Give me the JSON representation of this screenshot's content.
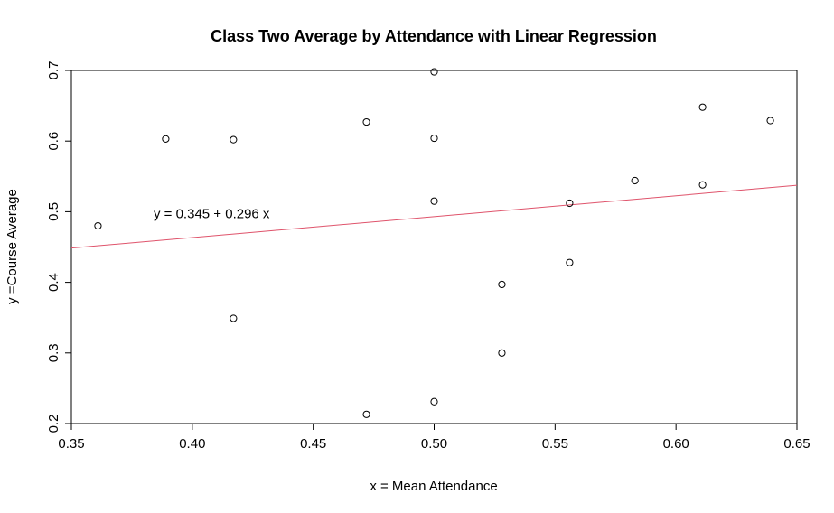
{
  "chart_data": {
    "type": "scatter",
    "title": "Class Two Average by Attendance with Linear Regression",
    "xlabel": "x = Mean Attendance",
    "ylabel": "y =Course Average",
    "xlim": [
      0.35,
      0.65
    ],
    "ylim": [
      0.2,
      0.7
    ],
    "xticks": [
      0.35,
      0.4,
      0.45,
      0.5,
      0.55,
      0.6,
      0.65
    ],
    "xtick_labels": [
      "0.35",
      "0.40",
      "0.45",
      "0.50",
      "0.55",
      "0.60",
      "0.65"
    ],
    "yticks": [
      0.2,
      0.3,
      0.4,
      0.5,
      0.6,
      0.7
    ],
    "ytick_labels": [
      "0.2",
      "0.3",
      "0.4",
      "0.5",
      "0.6",
      "0.7"
    ],
    "grid": false,
    "points": [
      {
        "x": 0.361,
        "y": 0.48
      },
      {
        "x": 0.389,
        "y": 0.603
      },
      {
        "x": 0.417,
        "y": 0.602
      },
      {
        "x": 0.417,
        "y": 0.349
      },
      {
        "x": 0.472,
        "y": 0.627
      },
      {
        "x": 0.472,
        "y": 0.213
      },
      {
        "x": 0.5,
        "y": 0.698
      },
      {
        "x": 0.5,
        "y": 0.604
      },
      {
        "x": 0.5,
        "y": 0.515
      },
      {
        "x": 0.5,
        "y": 0.231
      },
      {
        "x": 0.528,
        "y": 0.397
      },
      {
        "x": 0.528,
        "y": 0.3
      },
      {
        "x": 0.556,
        "y": 0.512
      },
      {
        "x": 0.556,
        "y": 0.428
      },
      {
        "x": 0.583,
        "y": 0.544
      },
      {
        "x": 0.611,
        "y": 0.648
      },
      {
        "x": 0.611,
        "y": 0.538
      },
      {
        "x": 0.639,
        "y": 0.629
      }
    ],
    "regression": {
      "intercept": 0.345,
      "slope": 0.296,
      "color": "#DF536B"
    },
    "annotation": {
      "text": "y =  0.345 + 0.296 x",
      "x": 0.384,
      "y": 0.497
    }
  }
}
